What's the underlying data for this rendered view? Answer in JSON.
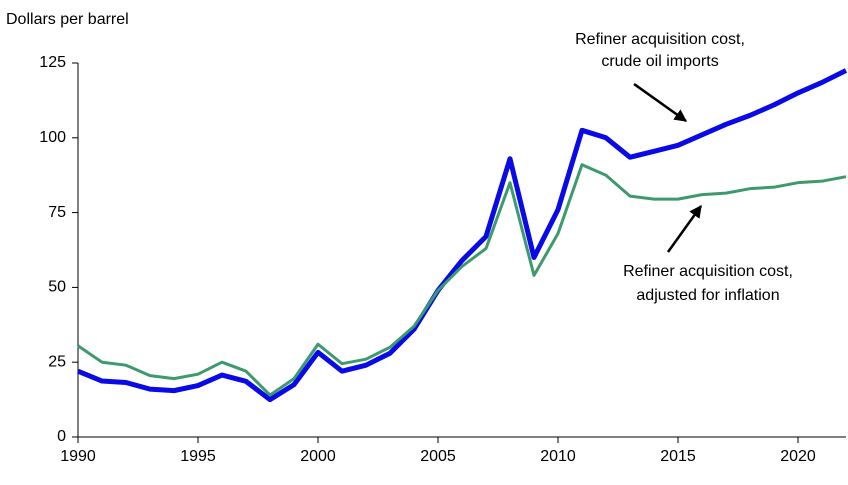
{
  "chart_data": {
    "type": "line",
    "y_axis_label": "Dollars per barrel",
    "x": [
      1990,
      1991,
      1992,
      1993,
      1994,
      1995,
      1996,
      1997,
      1998,
      1999,
      2000,
      2001,
      2002,
      2003,
      2004,
      2005,
      2006,
      2007,
      2008,
      2009,
      2010,
      2011,
      2012,
      2013,
      2014,
      2015,
      2016,
      2017,
      2018,
      2019,
      2020,
      2021,
      2022
    ],
    "series": [
      {
        "name": "Refiner acquisition cost, crude oil imports",
        "color": "#0a0ae6",
        "width": 5,
        "values": [
          22,
          18.7,
          18.2,
          16,
          15.5,
          17.2,
          20.7,
          18.6,
          12.5,
          17.5,
          28.3,
          22,
          24,
          28,
          36,
          49,
          59,
          67,
          93,
          60,
          76,
          102.5,
          100,
          93.5,
          95.5,
          97.5,
          101,
          104.5,
          107.5,
          111,
          115,
          118.5,
          122.5
        ]
      },
      {
        "name": "Refiner acquisition cost, adjusted for inflation",
        "color": "#3d9a6c",
        "width": 3,
        "values": [
          30.5,
          25,
          24,
          20.5,
          19.5,
          21,
          25,
          22,
          14,
          19.5,
          31,
          24.5,
          26,
          30,
          37,
          49,
          57,
          63,
          85,
          54,
          68,
          91,
          87.5,
          80.5,
          79.5,
          79.5,
          81,
          81.5,
          83,
          83.5,
          85,
          85.5,
          87
        ]
      }
    ],
    "annotations": [
      {
        "lines": [
          "Refiner acquisition cost,",
          "crude oil imports"
        ]
      },
      {
        "lines": [
          "Refiner acquisition cost,",
          "adjusted for inflation"
        ]
      }
    ],
    "xlim": [
      1990,
      2022
    ],
    "xticks": [
      1990,
      1995,
      2000,
      2005,
      2010,
      2015,
      2020
    ],
    "ylim": [
      0,
      125
    ],
    "yticks": [
      0,
      25,
      50,
      75,
      100,
      125
    ]
  }
}
